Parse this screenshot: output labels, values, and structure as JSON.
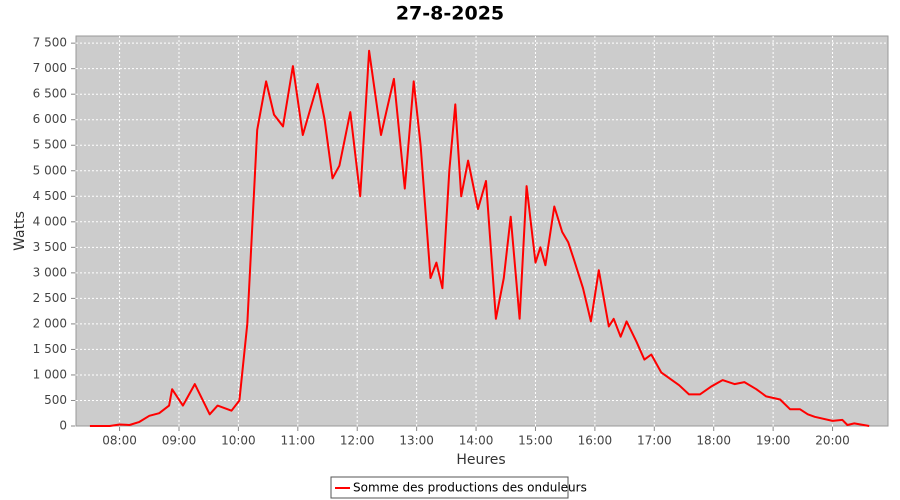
{
  "chart_data": {
    "type": "line",
    "title": "27-8-2025",
    "x_label": "Heures",
    "y_label": "Watts",
    "x": [
      "07:30",
      "07:40",
      "07:50",
      "08:00",
      "08:10",
      "08:20",
      "08:30",
      "08:40",
      "08:50",
      "08:53",
      "09:04",
      "09:16",
      "09:31",
      "09:39",
      "09:53",
      "10:01",
      "10:09",
      "10:19",
      "10:28",
      "10:36",
      "10:45",
      "10:55",
      "11:05",
      "11:20",
      "11:27",
      "11:35",
      "11:42",
      "11:53",
      "12:03",
      "12:12",
      "12:24",
      "12:37",
      "12:48",
      "12:57",
      "13:04",
      "13:14",
      "13:20",
      "13:26",
      "13:33",
      "13:39",
      "13:45",
      "13:52",
      "14:02",
      "14:10",
      "14:20",
      "14:28",
      "14:35",
      "14:44",
      "14:51",
      "15:00",
      "15:05",
      "15:10",
      "15:19",
      "15:27",
      "15:33",
      "15:39",
      "15:48",
      "15:56",
      "16:04",
      "16:14",
      "16:19",
      "16:26",
      "16:32",
      "16:42",
      "16:50",
      "16:57",
      "17:07",
      "17:25",
      "17:35",
      "17:46",
      "17:58",
      "18:09",
      "18:21",
      "18:31",
      "18:43",
      "18:53",
      "19:07",
      "19:17",
      "19:27",
      "19:35",
      "19:42",
      "20:00",
      "20:10",
      "20:15",
      "20:22",
      "20:37"
    ],
    "series": [
      {
        "name": "Somme des productions des onduleurs",
        "color": "#ff0000",
        "values": [
          0,
          0,
          0,
          30,
          20,
          80,
          200,
          250,
          400,
          720,
          400,
          820,
          230,
          400,
          300,
          500,
          2000,
          5800,
          6750,
          6100,
          5870,
          7050,
          5700,
          6700,
          6000,
          4850,
          5100,
          6150,
          4500,
          7350,
          5700,
          6800,
          4650,
          6750,
          5500,
          2900,
          3200,
          2700,
          5000,
          6300,
          4500,
          5200,
          4250,
          4800,
          2100,
          2900,
          4100,
          2100,
          4700,
          3200,
          3500,
          3150,
          4300,
          3800,
          3600,
          3250,
          2700,
          2050,
          3050,
          1950,
          2100,
          1750,
          2050,
          1650,
          1300,
          1400,
          1050,
          800,
          620,
          620,
          780,
          900,
          820,
          860,
          720,
          580,
          520,
          330,
          330,
          230,
          180,
          100,
          120,
          20,
          50,
          0
        ]
      }
    ],
    "xlim": [
      "07:16",
      "20:56"
    ],
    "xticks": [
      "08:00",
      "09:00",
      "10:00",
      "11:00",
      "12:00",
      "13:00",
      "14:00",
      "15:00",
      "16:00",
      "17:00",
      "18:00",
      "19:00",
      "20:00"
    ],
    "ylim": [
      0,
      7640
    ],
    "yticks": [
      0,
      500,
      {
        "value": 1000,
        "label": "1 000"
      },
      {
        "value": 1500,
        "label": "1 500"
      },
      {
        "value": 2000,
        "label": "2 000"
      },
      {
        "value": 2500,
        "label": "2 500"
      },
      {
        "value": 3000,
        "label": "3 000"
      },
      {
        "value": 3500,
        "label": "3 500"
      },
      {
        "value": 4000,
        "label": "4 000"
      },
      {
        "value": 4500,
        "label": "4 500"
      },
      {
        "value": 5000,
        "label": "5 000"
      },
      {
        "value": 5500,
        "label": "5 500"
      },
      {
        "value": 6000,
        "label": "6 000"
      },
      {
        "value": 6500,
        "label": "6 500"
      },
      {
        "value": 7000,
        "label": "7 000"
      },
      {
        "value": 7500,
        "label": "7 500"
      }
    ],
    "grid": true
  }
}
